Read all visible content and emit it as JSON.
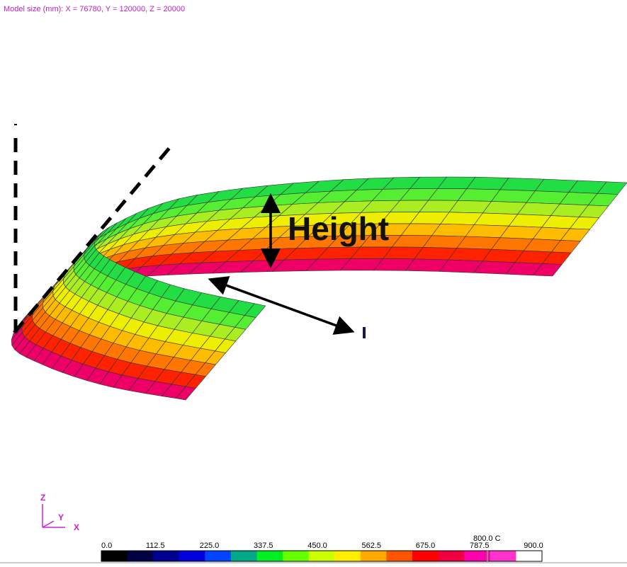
{
  "header": {
    "model_size": "Model size (mm): X = 76780, Y = 120000, Z = 20000"
  },
  "annotation": {
    "height": "Height"
  },
  "axes": {
    "z": "Z",
    "y": "Y",
    "x": "X"
  },
  "legend": {
    "ticks": [
      "0.0",
      "112.5",
      "225.0",
      "337.5",
      "450.0",
      "562.5",
      "675.0",
      "787.5",
      "900.0"
    ],
    "marker": "800.0 C"
  }
}
